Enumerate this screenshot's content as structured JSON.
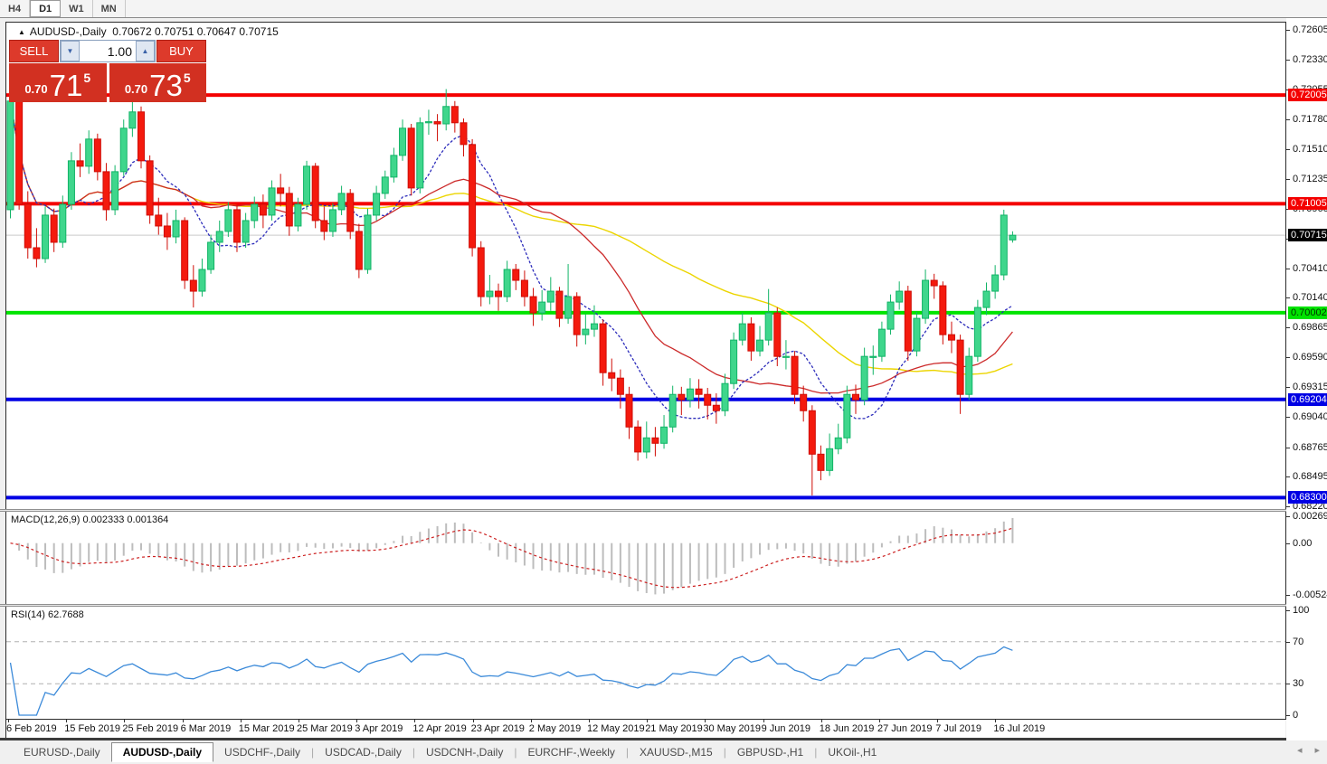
{
  "toolbar": {
    "timeframes": [
      {
        "label": "H4",
        "active": false
      },
      {
        "label": "D1",
        "active": true
      },
      {
        "label": "W1",
        "active": false
      },
      {
        "label": "MN",
        "active": false
      }
    ]
  },
  "chart": {
    "title": {
      "symbol": "AUDUSD-,Daily",
      "ohlc": "0.70672 0.70751 0.70647 0.70715"
    },
    "trade_panel": {
      "sell_label": "SELL",
      "buy_label": "BUY",
      "volume": "1.00",
      "sell_price": {
        "prefix": "0.70",
        "big": "71",
        "sup": "5"
      },
      "buy_price": {
        "prefix": "0.70",
        "big": "73",
        "sup": "5"
      }
    }
  },
  "chart_data": {
    "type": "candlestick",
    "symbol": "AUDUSD",
    "timeframe": "Daily",
    "price_max": 0.72672,
    "price_min": 0.68195,
    "x_labels": [
      "6 Feb 2019",
      "15 Feb 2019",
      "25 Feb 2019",
      "6 Mar 2019",
      "15 Mar 2019",
      "25 Mar 2019",
      "3 Apr 2019",
      "12 Apr 2019",
      "23 Apr 2019",
      "2 May 2019",
      "12 May 2019",
      "21 May 2019",
      "30 May 2019",
      "9 Jun 2019",
      "18 Jun 2019",
      "27 Jun 2019",
      "7 Jul 2019",
      "16 Jul 2019"
    ],
    "price_axis_ticks": [
      "0.72605",
      "0.72330",
      "0.72055",
      "0.71780",
      "0.71510",
      "0.71235",
      "0.70960",
      "0.70685",
      "0.70410",
      "0.70140",
      "0.69865",
      "0.69590",
      "0.69315",
      "0.69040",
      "0.68765",
      "0.68495",
      "0.68220"
    ],
    "hlines": [
      {
        "price": 0.72005,
        "label": "0.72005",
        "color": "#f40000",
        "text": "#ffffff"
      },
      {
        "price": 0.71005,
        "label": "0.71005",
        "color": "#f40000",
        "text": "#ffffff"
      },
      {
        "price": 0.70002,
        "label": "0.70002",
        "color": "#00e400",
        "text": "#003300"
      },
      {
        "price": 0.69204,
        "label": "0.69204",
        "color": "#0000e4",
        "text": "#ffffff"
      },
      {
        "price": 0.683,
        "label": "0.68300",
        "color": "#0000e4",
        "text": "#ffffff"
      }
    ],
    "current_price": {
      "value": 0.70715,
      "label": "0.70715",
      "line_color": "#c9c9c9",
      "box_color": "#000000"
    },
    "colors": {
      "candle_up": "#3fd68c",
      "candle_up_stroke": "#12b467",
      "candle_down": "#f41a0e",
      "candle_down_stroke": "#cf0d06",
      "ma_fast": "#2d2dbb",
      "ma_mid": "#cc2a2a",
      "ma_slow": "#ecd500",
      "macd_hist": "#bdbdbd",
      "macd_signal": "#cc2020",
      "rsi_line": "#3b8ad9",
      "rsi_levels": "#b0b0b0"
    },
    "candles": [
      [
        0.7095,
        0.721,
        0.7087,
        0.7195
      ],
      [
        0.7195,
        0.7198,
        0.7095,
        0.71
      ],
      [
        0.71,
        0.7112,
        0.705,
        0.706
      ],
      [
        0.706,
        0.7078,
        0.7042,
        0.705
      ],
      [
        0.705,
        0.7098,
        0.7046,
        0.709
      ],
      [
        0.709,
        0.7096,
        0.7056,
        0.7065
      ],
      [
        0.7065,
        0.7108,
        0.706,
        0.71
      ],
      [
        0.71,
        0.7148,
        0.7095,
        0.714
      ],
      [
        0.714,
        0.7156,
        0.7125,
        0.7135
      ],
      [
        0.7135,
        0.7168,
        0.7128,
        0.716
      ],
      [
        0.716,
        0.7165,
        0.7122,
        0.713
      ],
      [
        0.713,
        0.7138,
        0.7085,
        0.7095
      ],
      [
        0.7095,
        0.7136,
        0.709,
        0.713
      ],
      [
        0.713,
        0.7178,
        0.7126,
        0.717
      ],
      [
        0.717,
        0.7198,
        0.7162,
        0.7185
      ],
      [
        0.7185,
        0.719,
        0.7133,
        0.714
      ],
      [
        0.714,
        0.7145,
        0.7082,
        0.709
      ],
      [
        0.709,
        0.7106,
        0.7072,
        0.708
      ],
      [
        0.708,
        0.7092,
        0.7058,
        0.707
      ],
      [
        0.707,
        0.7095,
        0.7064,
        0.7085
      ],
      [
        0.7085,
        0.7088,
        0.7022,
        0.703
      ],
      [
        0.703,
        0.7044,
        0.7005,
        0.702
      ],
      [
        0.702,
        0.705,
        0.7015,
        0.704
      ],
      [
        0.704,
        0.7072,
        0.7036,
        0.7065
      ],
      [
        0.7065,
        0.7085,
        0.7056,
        0.7075
      ],
      [
        0.7075,
        0.7102,
        0.707,
        0.7095
      ],
      [
        0.7095,
        0.7099,
        0.7056,
        0.7065
      ],
      [
        0.7065,
        0.7092,
        0.706,
        0.7085
      ],
      [
        0.7085,
        0.7107,
        0.7078,
        0.71
      ],
      [
        0.71,
        0.7109,
        0.7078,
        0.709
      ],
      [
        0.709,
        0.7122,
        0.7085,
        0.7115
      ],
      [
        0.7115,
        0.7128,
        0.7098,
        0.711
      ],
      [
        0.711,
        0.7116,
        0.7071,
        0.708
      ],
      [
        0.708,
        0.7106,
        0.7075,
        0.71
      ],
      [
        0.71,
        0.714,
        0.7095,
        0.7135
      ],
      [
        0.7135,
        0.7138,
        0.7078,
        0.7085
      ],
      [
        0.7085,
        0.7098,
        0.7067,
        0.7075
      ],
      [
        0.7075,
        0.7101,
        0.707,
        0.7095
      ],
      [
        0.7095,
        0.7117,
        0.709,
        0.711
      ],
      [
        0.711,
        0.7114,
        0.7068,
        0.7075
      ],
      [
        0.7075,
        0.7082,
        0.7032,
        0.704
      ],
      [
        0.704,
        0.7096,
        0.7036,
        0.709
      ],
      [
        0.709,
        0.7117,
        0.7085,
        0.711
      ],
      [
        0.711,
        0.7131,
        0.7105,
        0.7125
      ],
      [
        0.7125,
        0.7152,
        0.712,
        0.7145
      ],
      [
        0.7145,
        0.7178,
        0.714,
        0.717
      ],
      [
        0.717,
        0.7174,
        0.7108,
        0.7115
      ],
      [
        0.7115,
        0.718,
        0.711,
        0.7175
      ],
      [
        0.7175,
        0.7187,
        0.7164,
        0.7176
      ],
      [
        0.7176,
        0.7183,
        0.7158,
        0.7174
      ],
      [
        0.7174,
        0.7206,
        0.7168,
        0.719
      ],
      [
        0.719,
        0.7195,
        0.7166,
        0.7175
      ],
      [
        0.7175,
        0.7179,
        0.7144,
        0.7155
      ],
      [
        0.7155,
        0.716,
        0.7052,
        0.706
      ],
      [
        0.706,
        0.7066,
        0.7006,
        0.7015
      ],
      [
        0.7015,
        0.7035,
        0.7008,
        0.702
      ],
      [
        0.702,
        0.7027,
        0.7002,
        0.7015
      ],
      [
        0.7015,
        0.7048,
        0.701,
        0.704
      ],
      [
        0.704,
        0.7045,
        0.7021,
        0.703
      ],
      [
        0.703,
        0.7039,
        0.7006,
        0.7015
      ],
      [
        0.7015,
        0.7023,
        0.6988,
        0.7
      ],
      [
        0.7,
        0.7021,
        0.6993,
        0.701
      ],
      [
        0.701,
        0.7033,
        0.7002,
        0.702
      ],
      [
        0.702,
        0.7024,
        0.6987,
        0.6995
      ],
      [
        0.6995,
        0.7045,
        0.699,
        0.7015
      ],
      [
        0.7015,
        0.7019,
        0.6969,
        0.698
      ],
      [
        0.698,
        0.6999,
        0.6971,
        0.6985
      ],
      [
        0.6985,
        0.7007,
        0.6978,
        0.699
      ],
      [
        0.699,
        0.6994,
        0.6933,
        0.6945
      ],
      [
        0.6945,
        0.6958,
        0.6928,
        0.694
      ],
      [
        0.694,
        0.6948,
        0.6912,
        0.6925
      ],
      [
        0.6925,
        0.6932,
        0.6884,
        0.6895
      ],
      [
        0.6895,
        0.6901,
        0.6864,
        0.6872
      ],
      [
        0.6872,
        0.69,
        0.6866,
        0.6885
      ],
      [
        0.6885,
        0.6895,
        0.6868,
        0.688
      ],
      [
        0.688,
        0.6906,
        0.6875,
        0.6895
      ],
      [
        0.6895,
        0.6933,
        0.689,
        0.6925
      ],
      [
        0.6925,
        0.6932,
        0.6906,
        0.692
      ],
      [
        0.692,
        0.694,
        0.6913,
        0.693
      ],
      [
        0.693,
        0.6939,
        0.6912,
        0.6925
      ],
      [
        0.6925,
        0.6931,
        0.6902,
        0.6915
      ],
      [
        0.6915,
        0.6926,
        0.6898,
        0.691
      ],
      [
        0.691,
        0.6944,
        0.6905,
        0.6935
      ],
      [
        0.6935,
        0.6982,
        0.693,
        0.6975
      ],
      [
        0.6975,
        0.7,
        0.697,
        0.699
      ],
      [
        0.699,
        0.6996,
        0.6956,
        0.6965
      ],
      [
        0.6965,
        0.6988,
        0.696,
        0.6975
      ],
      [
        0.6975,
        0.7022,
        0.697,
        0.7
      ],
      [
        0.7,
        0.7005,
        0.6951,
        0.696
      ],
      [
        0.696,
        0.6975,
        0.6948,
        0.696
      ],
      [
        0.696,
        0.6965,
        0.6916,
        0.6925
      ],
      [
        0.6925,
        0.6933,
        0.69,
        0.691
      ],
      [
        0.691,
        0.6915,
        0.6832,
        0.687
      ],
      [
        0.687,
        0.6878,
        0.6846,
        0.6855
      ],
      [
        0.6855,
        0.6889,
        0.685,
        0.6875
      ],
      [
        0.6875,
        0.6898,
        0.687,
        0.6885
      ],
      [
        0.6885,
        0.6933,
        0.688,
        0.6925
      ],
      [
        0.6925,
        0.6934,
        0.6907,
        0.692
      ],
      [
        0.692,
        0.6968,
        0.6915,
        0.696
      ],
      [
        0.696,
        0.697,
        0.6943,
        0.696
      ],
      [
        0.696,
        0.6992,
        0.6955,
        0.6985
      ],
      [
        0.6985,
        0.7017,
        0.698,
        0.701
      ],
      [
        0.701,
        0.7029,
        0.7003,
        0.702
      ],
      [
        0.702,
        0.7025,
        0.6956,
        0.6965
      ],
      [
        0.6965,
        0.7001,
        0.696,
        0.6995
      ],
      [
        0.6995,
        0.704,
        0.699,
        0.703
      ],
      [
        0.703,
        0.7036,
        0.7013,
        0.7025
      ],
      [
        0.7025,
        0.7029,
        0.6971,
        0.698
      ],
      [
        0.698,
        0.6992,
        0.6963,
        0.6975
      ],
      [
        0.6975,
        0.698,
        0.6907,
        0.6925
      ],
      [
        0.6925,
        0.6968,
        0.692,
        0.696
      ],
      [
        0.696,
        0.7012,
        0.6955,
        0.7005
      ],
      [
        0.7005,
        0.7028,
        0.6998,
        0.702
      ],
      [
        0.702,
        0.7044,
        0.7013,
        0.7035
      ],
      [
        0.7035,
        0.7095,
        0.703,
        0.709
      ],
      [
        0.70672,
        0.70751,
        0.70647,
        0.70715
      ]
    ],
    "indicators": {
      "macd": {
        "name": "MACD(12,26,9)",
        "values_text": "0.002333 0.001364",
        "axis_labels": [
          {
            "value": 0.002694,
            "text": "0.002694"
          },
          {
            "value": 0.0,
            "text": "0.00"
          },
          {
            "value": -0.005242,
            "text": "-0.005242"
          }
        ],
        "range": {
          "max": 0.0032,
          "min": -0.0062
        }
      },
      "rsi": {
        "name": "RSI(14)",
        "value_text": "62.7688",
        "axis_labels": [
          {
            "value": 100,
            "text": "100"
          },
          {
            "value": 70,
            "text": "70"
          },
          {
            "value": 30,
            "text": "30"
          },
          {
            "value": 0,
            "text": "0"
          }
        ],
        "levels": [
          70,
          30
        ]
      }
    }
  },
  "bottom_tabs": {
    "items": [
      {
        "label": "EURUSD-,Daily",
        "active": false
      },
      {
        "label": "AUDUSD-,Daily",
        "active": true
      },
      {
        "label": "USDCHF-,Daily",
        "active": false
      },
      {
        "label": "USDCAD-,Daily",
        "active": false
      },
      {
        "label": "USDCNH-,Daily",
        "active": false
      },
      {
        "label": "EURCHF-,Weekly",
        "active": false
      },
      {
        "label": "XAUUSD-,M15",
        "active": false
      },
      {
        "label": "GBPUSD-,H1",
        "active": false
      },
      {
        "label": "UKOil-,H1",
        "active": false
      }
    ],
    "scroll_left": "◂",
    "scroll_right": "▸"
  }
}
